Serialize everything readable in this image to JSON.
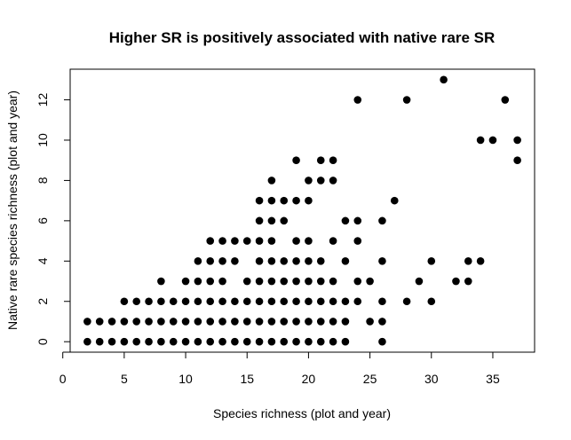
{
  "chart_data": {
    "type": "scatter",
    "title": "Higher SR is positively associated with native rare SR",
    "xlabel": "Species richness (plot and year)",
    "ylabel": "Native rare species richness (plot and year)",
    "xlim": [
      0.6,
      38.4
    ],
    "ylim": [
      -0.52,
      13.52
    ],
    "x_ticks": [
      0,
      5,
      10,
      15,
      20,
      25,
      30,
      35
    ],
    "y_ticks": [
      0,
      2,
      4,
      6,
      8,
      10,
      12
    ],
    "grid": false,
    "legend": "none",
    "point_color": "#000000",
    "points": [
      [
        2,
        0
      ],
      [
        3,
        0
      ],
      [
        4,
        0
      ],
      [
        5,
        0
      ],
      [
        6,
        0
      ],
      [
        7,
        0
      ],
      [
        8,
        0
      ],
      [
        9,
        0
      ],
      [
        10,
        0
      ],
      [
        11,
        0
      ],
      [
        12,
        0
      ],
      [
        13,
        0
      ],
      [
        14,
        0
      ],
      [
        15,
        0
      ],
      [
        16,
        0
      ],
      [
        17,
        0
      ],
      [
        18,
        0
      ],
      [
        19,
        0
      ],
      [
        20,
        0
      ],
      [
        21,
        0
      ],
      [
        22,
        0
      ],
      [
        23,
        0
      ],
      [
        26,
        0
      ],
      [
        2,
        1
      ],
      [
        3,
        1
      ],
      [
        4,
        1
      ],
      [
        5,
        1
      ],
      [
        6,
        1
      ],
      [
        7,
        1
      ],
      [
        8,
        1
      ],
      [
        9,
        1
      ],
      [
        10,
        1
      ],
      [
        11,
        1
      ],
      [
        12,
        1
      ],
      [
        13,
        1
      ],
      [
        14,
        1
      ],
      [
        15,
        1
      ],
      [
        16,
        1
      ],
      [
        17,
        1
      ],
      [
        18,
        1
      ],
      [
        19,
        1
      ],
      [
        20,
        1
      ],
      [
        21,
        1
      ],
      [
        22,
        1
      ],
      [
        23,
        1
      ],
      [
        25,
        1
      ],
      [
        26,
        1
      ],
      [
        5,
        2
      ],
      [
        6,
        2
      ],
      [
        7,
        2
      ],
      [
        8,
        2
      ],
      [
        9,
        2
      ],
      [
        10,
        2
      ],
      [
        11,
        2
      ],
      [
        12,
        2
      ],
      [
        13,
        2
      ],
      [
        14,
        2
      ],
      [
        15,
        2
      ],
      [
        16,
        2
      ],
      [
        17,
        2
      ],
      [
        18,
        2
      ],
      [
        19,
        2
      ],
      [
        20,
        2
      ],
      [
        21,
        2
      ],
      [
        22,
        2
      ],
      [
        23,
        2
      ],
      [
        24,
        2
      ],
      [
        26,
        2
      ],
      [
        28,
        2
      ],
      [
        30,
        2
      ],
      [
        8,
        3
      ],
      [
        10,
        3
      ],
      [
        11,
        3
      ],
      [
        12,
        3
      ],
      [
        13,
        3
      ],
      [
        15,
        3
      ],
      [
        16,
        3
      ],
      [
        17,
        3
      ],
      [
        18,
        3
      ],
      [
        19,
        3
      ],
      [
        20,
        3
      ],
      [
        21,
        3
      ],
      [
        22,
        3
      ],
      [
        24,
        3
      ],
      [
        25,
        3
      ],
      [
        29,
        3
      ],
      [
        32,
        3
      ],
      [
        33,
        3
      ],
      [
        11,
        4
      ],
      [
        12,
        4
      ],
      [
        13,
        4
      ],
      [
        14,
        4
      ],
      [
        16,
        4
      ],
      [
        17,
        4
      ],
      [
        18,
        4
      ],
      [
        19,
        4
      ],
      [
        20,
        4
      ],
      [
        21,
        4
      ],
      [
        23,
        4
      ],
      [
        26,
        4
      ],
      [
        30,
        4
      ],
      [
        33,
        4
      ],
      [
        34,
        4
      ],
      [
        12,
        5
      ],
      [
        13,
        5
      ],
      [
        14,
        5
      ],
      [
        15,
        5
      ],
      [
        16,
        5
      ],
      [
        17,
        5
      ],
      [
        19,
        5
      ],
      [
        20,
        5
      ],
      [
        22,
        5
      ],
      [
        24,
        5
      ],
      [
        16,
        6
      ],
      [
        17,
        6
      ],
      [
        18,
        6
      ],
      [
        23,
        6
      ],
      [
        24,
        6
      ],
      [
        26,
        6
      ],
      [
        16,
        7
      ],
      [
        17,
        7
      ],
      [
        18,
        7
      ],
      [
        19,
        7
      ],
      [
        20,
        7
      ],
      [
        27,
        7
      ],
      [
        17,
        8
      ],
      [
        20,
        8
      ],
      [
        21,
        8
      ],
      [
        22,
        8
      ],
      [
        19,
        9
      ],
      [
        21,
        9
      ],
      [
        22,
        9
      ],
      [
        37,
        9
      ],
      [
        34,
        10
      ],
      [
        35,
        10
      ],
      [
        37,
        10
      ],
      [
        24,
        12
      ],
      [
        28,
        12
      ],
      [
        36,
        12
      ],
      [
        31,
        13
      ]
    ]
  }
}
